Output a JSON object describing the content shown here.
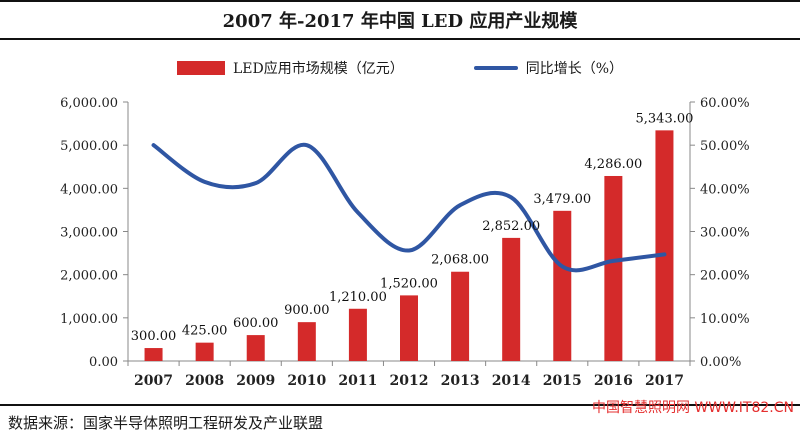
{
  "title": "2007 年-2017 年中国 LED 应用产业规模",
  "source": "数据来源：国家半导体照明工程研发及产业联盟",
  "watermark": "中国智慧照明网 WWW.IT82.CN",
  "colors": {
    "bar": "#d42a2a",
    "line": "#2f56a3",
    "axis": "#888888"
  },
  "chart_data": {
    "type": "bar",
    "categories": [
      "2007",
      "2008",
      "2009",
      "2010",
      "2011",
      "2012",
      "2013",
      "2014",
      "2015",
      "2016",
      "2017"
    ],
    "series": [
      {
        "name": "LED应用市场规模（亿元）",
        "type": "bar",
        "axis": "left",
        "values": [
          300,
          425,
          600,
          900,
          1210,
          1520,
          2068,
          2852,
          3479,
          4286,
          5343
        ],
        "labels": [
          "300.00",
          "425.00",
          "600.00",
          "900.00",
          "1,210.00",
          "1,520.00",
          "2,068.00",
          "2,852.00",
          "3,479.00",
          "4,286.00",
          "5,343.00"
        ]
      },
      {
        "name": "同比增长（%）",
        "type": "line",
        "axis": "right",
        "values": [
          50.0,
          41.5,
          41.2,
          50.0,
          34.4,
          25.6,
          36.1,
          37.9,
          21.9,
          23.2,
          24.7
        ]
      }
    ],
    "yleft": {
      "lim": [
        0,
        6000
      ],
      "ticks": [
        "0.00",
        "1,000.00",
        "2,000.00",
        "3,000.00",
        "4,000.00",
        "5,000.00",
        "6,000.00"
      ]
    },
    "yright": {
      "lim": [
        0,
        60
      ],
      "ticks": [
        "0.00%",
        "10.00%",
        "20.00%",
        "30.00%",
        "40.00%",
        "50.00%",
        "60.00%"
      ]
    },
    "grid": false,
    "legend_position": "top"
  }
}
